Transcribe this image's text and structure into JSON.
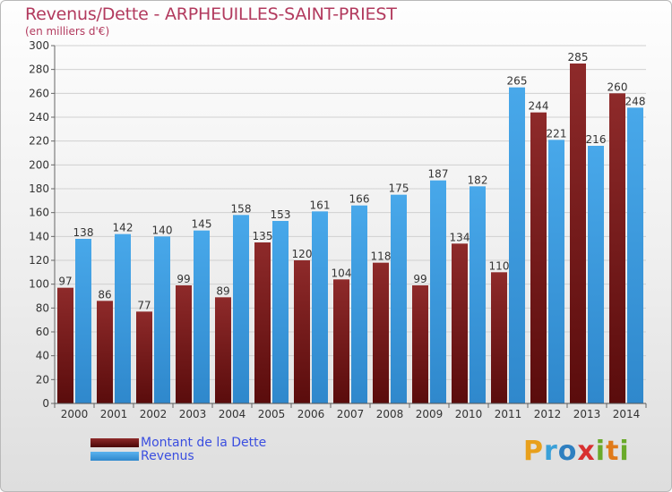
{
  "title": "Revenus/Dette - ARPHEUILLES-SAINT-PRIEST",
  "subtitle": "(en milliers d'€)",
  "legend": {
    "debt_label": "Montant de la Dette",
    "revenue_label": "Revenus"
  },
  "brand": {
    "letters": [
      "P",
      "r",
      "o",
      "x",
      "i",
      "t",
      "i"
    ],
    "colors": [
      "#e8a01c",
      "#3aa0d8",
      "#2e7fc0",
      "#d83030",
      "#6aaa2a",
      "#e07a1a",
      "#6aaa2a"
    ]
  },
  "colors": {
    "debt": "#7a1a1a",
    "revenue": "#3d9be0",
    "title": "#b23a5e",
    "legend_text": "#3a4ee0"
  },
  "chart_data": {
    "type": "bar",
    "categories": [
      "2000",
      "2001",
      "2002",
      "2003",
      "2004",
      "2005",
      "2006",
      "2007",
      "2008",
      "2009",
      "2010",
      "2011",
      "2012",
      "2013",
      "2014"
    ],
    "series": [
      {
        "name": "Montant de la Dette",
        "values": [
          97,
          86,
          77,
          99,
          89,
          135,
          120,
          104,
          118,
          99,
          134,
          110,
          244,
          285,
          260
        ]
      },
      {
        "name": "Revenus",
        "values": [
          138,
          142,
          140,
          145,
          158,
          153,
          161,
          166,
          175,
          187,
          182,
          265,
          221,
          216,
          248
        ]
      }
    ],
    "ylim": [
      0,
      300
    ],
    "yticks": [
      0,
      20,
      40,
      60,
      80,
      100,
      120,
      140,
      160,
      180,
      200,
      220,
      240,
      260,
      280,
      300
    ],
    "grid": true,
    "legend": "bottom-left"
  }
}
